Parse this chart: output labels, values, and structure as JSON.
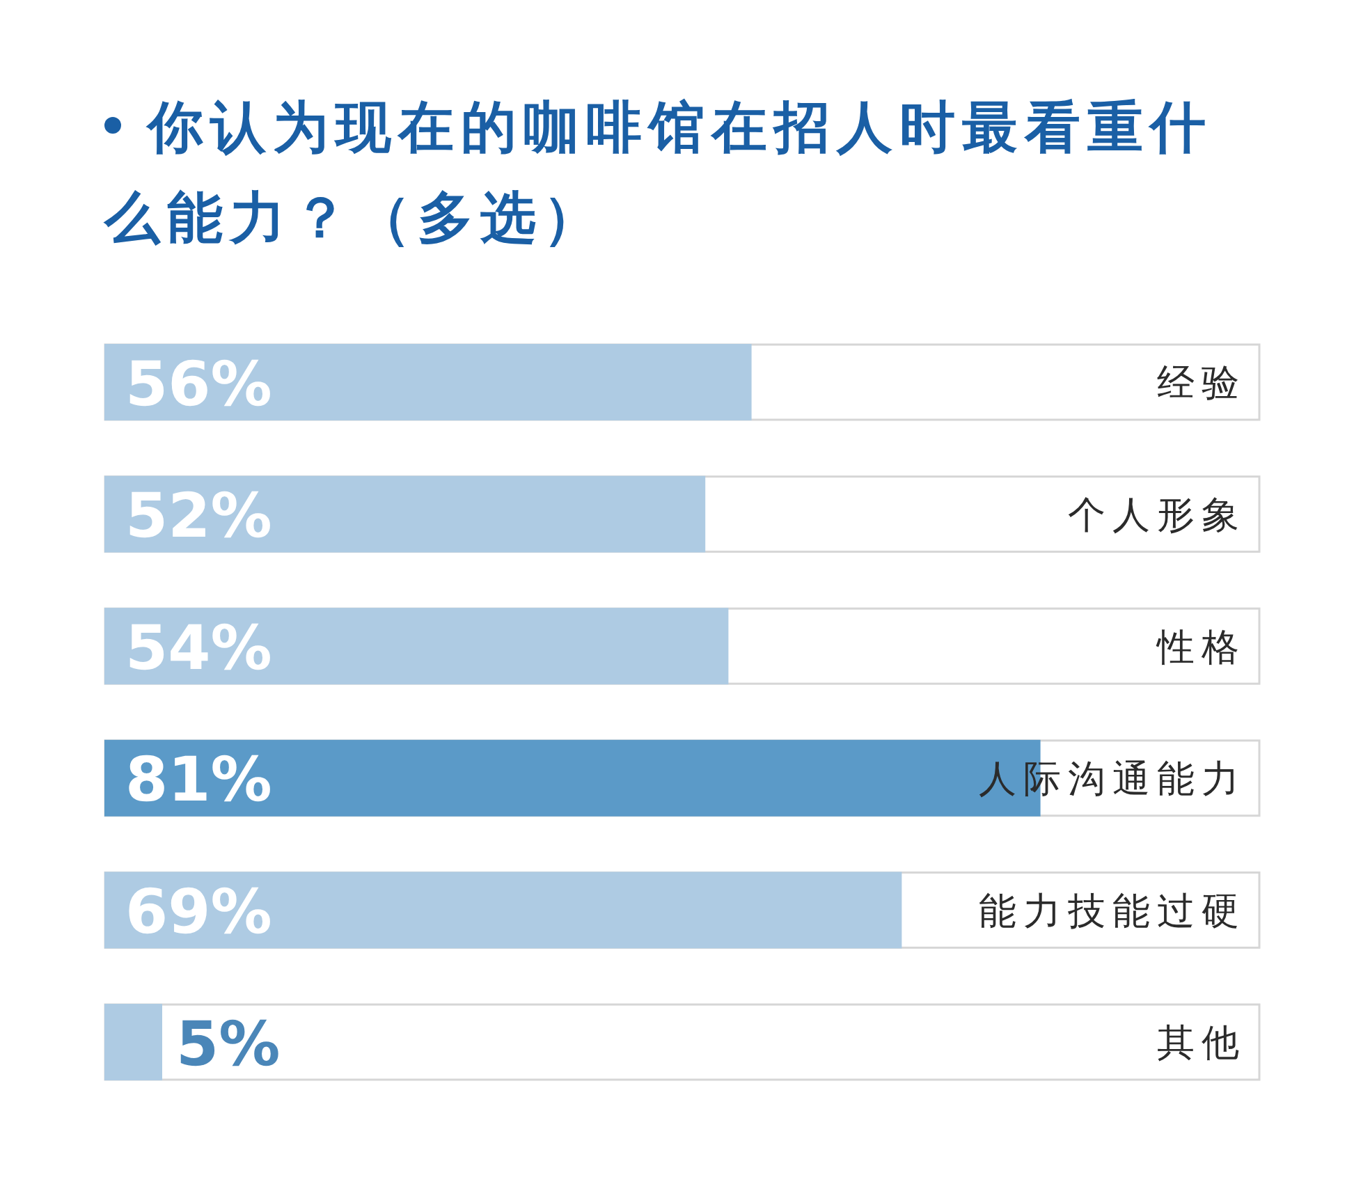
{
  "chart_data": {
    "type": "bar",
    "orientation": "horizontal",
    "title": "你认为现在的咖啡馆在招人时最看重什么能力？（多选）",
    "categories": [
      "经验",
      "个人形象",
      "性格",
      "人际沟通能力",
      "能力技能过硬",
      "其他"
    ],
    "values": [
      56,
      52,
      54,
      81,
      69,
      5
    ],
    "value_labels": [
      "56%",
      "52%",
      "54%",
      "81%",
      "69%",
      "5%"
    ],
    "colors": [
      "#aecbe3",
      "#aecbe3",
      "#aecbe3",
      "#5b9ac8",
      "#aecbe3",
      "#aecbe3"
    ],
    "xlim": [
      0,
      100
    ],
    "tick_labels": "y"
  }
}
